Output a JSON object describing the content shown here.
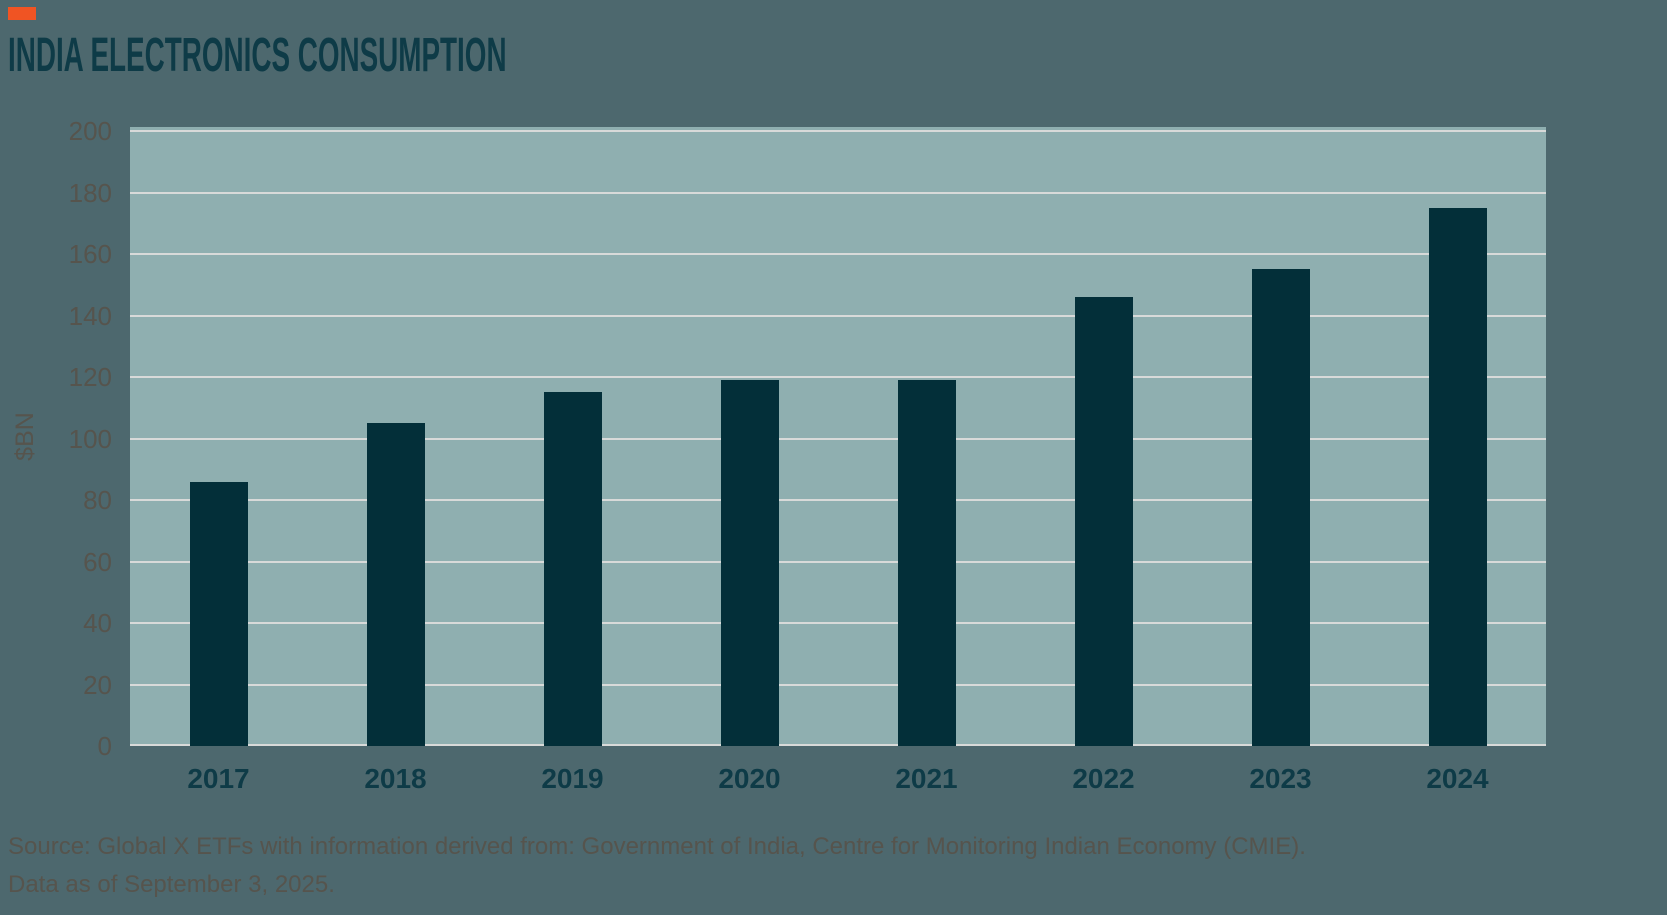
{
  "header": {
    "accent_color": "#f05423"
  },
  "chart_data": {
    "type": "bar",
    "title": "INDIA ELECTRONICS CONSUMPTION",
    "categories": [
      "2017",
      "2018",
      "2019",
      "2020",
      "2021",
      "2022",
      "2023",
      "2024"
    ],
    "values": [
      86,
      105,
      115,
      119,
      119,
      146,
      155,
      175
    ],
    "xlabel": "",
    "ylabel": "$BN",
    "ylim": [
      0,
      200
    ],
    "yticks": [
      0,
      20,
      40,
      60,
      80,
      100,
      120,
      140,
      160,
      180,
      200
    ],
    "grid": "horizontal",
    "legend": "none",
    "colors": {
      "bar": "#032f39",
      "plot_background": "#8fafb0",
      "page_background": "#4d686e",
      "gridline": "#d8dad9",
      "axis_text": "#56544d",
      "category_text": "#0e3b47",
      "title_text": "#0e3b47",
      "accent": "#f05423"
    }
  },
  "footer": {
    "source_line1": "Source: Global X ETFs with information derived from: Government of India, Centre for Monitoring Indian Economy (CMIE).",
    "source_line2": "Data as of September 3, 2025."
  }
}
